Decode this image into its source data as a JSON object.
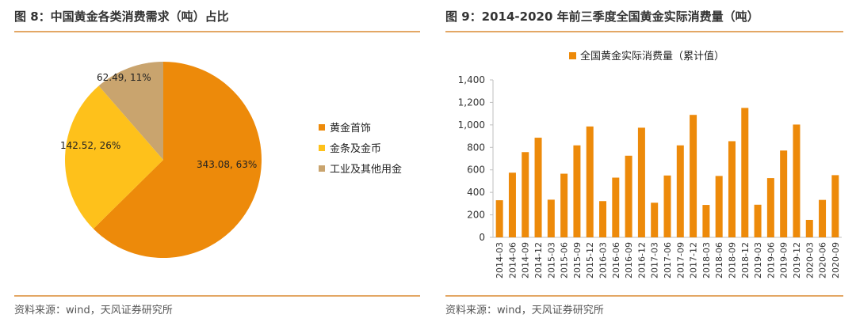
{
  "left": {
    "title": "图 8：中国黄金各类消费需求（吨）占比",
    "source": "资料来源：wind，天风证券研究所"
  },
  "right": {
    "title": "图 9：2014-2020 年前三季度全国黄金实际消费量（吨）",
    "source": "资料来源：wind，天风证券研究所"
  },
  "chart_data": [
    {
      "type": "pie",
      "title": "图 8：中国黄金各类消费需求（吨）占比",
      "legend_position": "right",
      "slices": [
        {
          "name": "黄金首饰",
          "value": 343.08,
          "percent": 63,
          "label": "343.08, 63%",
          "color": "#ED8A0A"
        },
        {
          "name": "金条及金币",
          "value": 142.52,
          "percent": 26,
          "label": "142.52, 26%",
          "color": "#FEC11B"
        },
        {
          "name": "工业及其他用金",
          "value": 62.49,
          "percent": 11,
          "label": "62.49, 11%",
          "color": "#C9A46E"
        }
      ]
    },
    {
      "type": "bar",
      "title": "图 9：2014-2020 年前三季度全国黄金实际消费量（吨）",
      "legend_position": "top",
      "grid": false,
      "categories": [
        "2014-03",
        "2014-06",
        "2014-09",
        "2014-12",
        "2015-03",
        "2015-06",
        "2015-09",
        "2015-12",
        "2016-03",
        "2016-06",
        "2016-09",
        "2016-12",
        "2017-03",
        "2017-06",
        "2017-09",
        "2017-12",
        "2018-03",
        "2018-06",
        "2018-09",
        "2018-12",
        "2019-03",
        "2019-06",
        "2019-09",
        "2019-12",
        "2020-03",
        "2020-06",
        "2020-09"
      ],
      "series": [
        {
          "name": "全国黄金实际消费量（累计值）",
          "color": "#ED8A0A",
          "values": [
            330,
            575,
            758,
            886,
            335,
            566,
            818,
            986,
            322,
            531,
            726,
            975,
            308,
            550,
            818,
            1089,
            288,
            546,
            855,
            1151,
            290,
            527,
            772,
            1003,
            155,
            333,
            553
          ]
        }
      ],
      "ylim": [
        0,
        1400
      ],
      "yticks": [
        0,
        200,
        400,
        600,
        800,
        1000,
        1200,
        1400
      ],
      "ytick_labels": [
        "0",
        "200",
        "400",
        "600",
        "800",
        "1,000",
        "1,200",
        "1,400"
      ]
    }
  ]
}
